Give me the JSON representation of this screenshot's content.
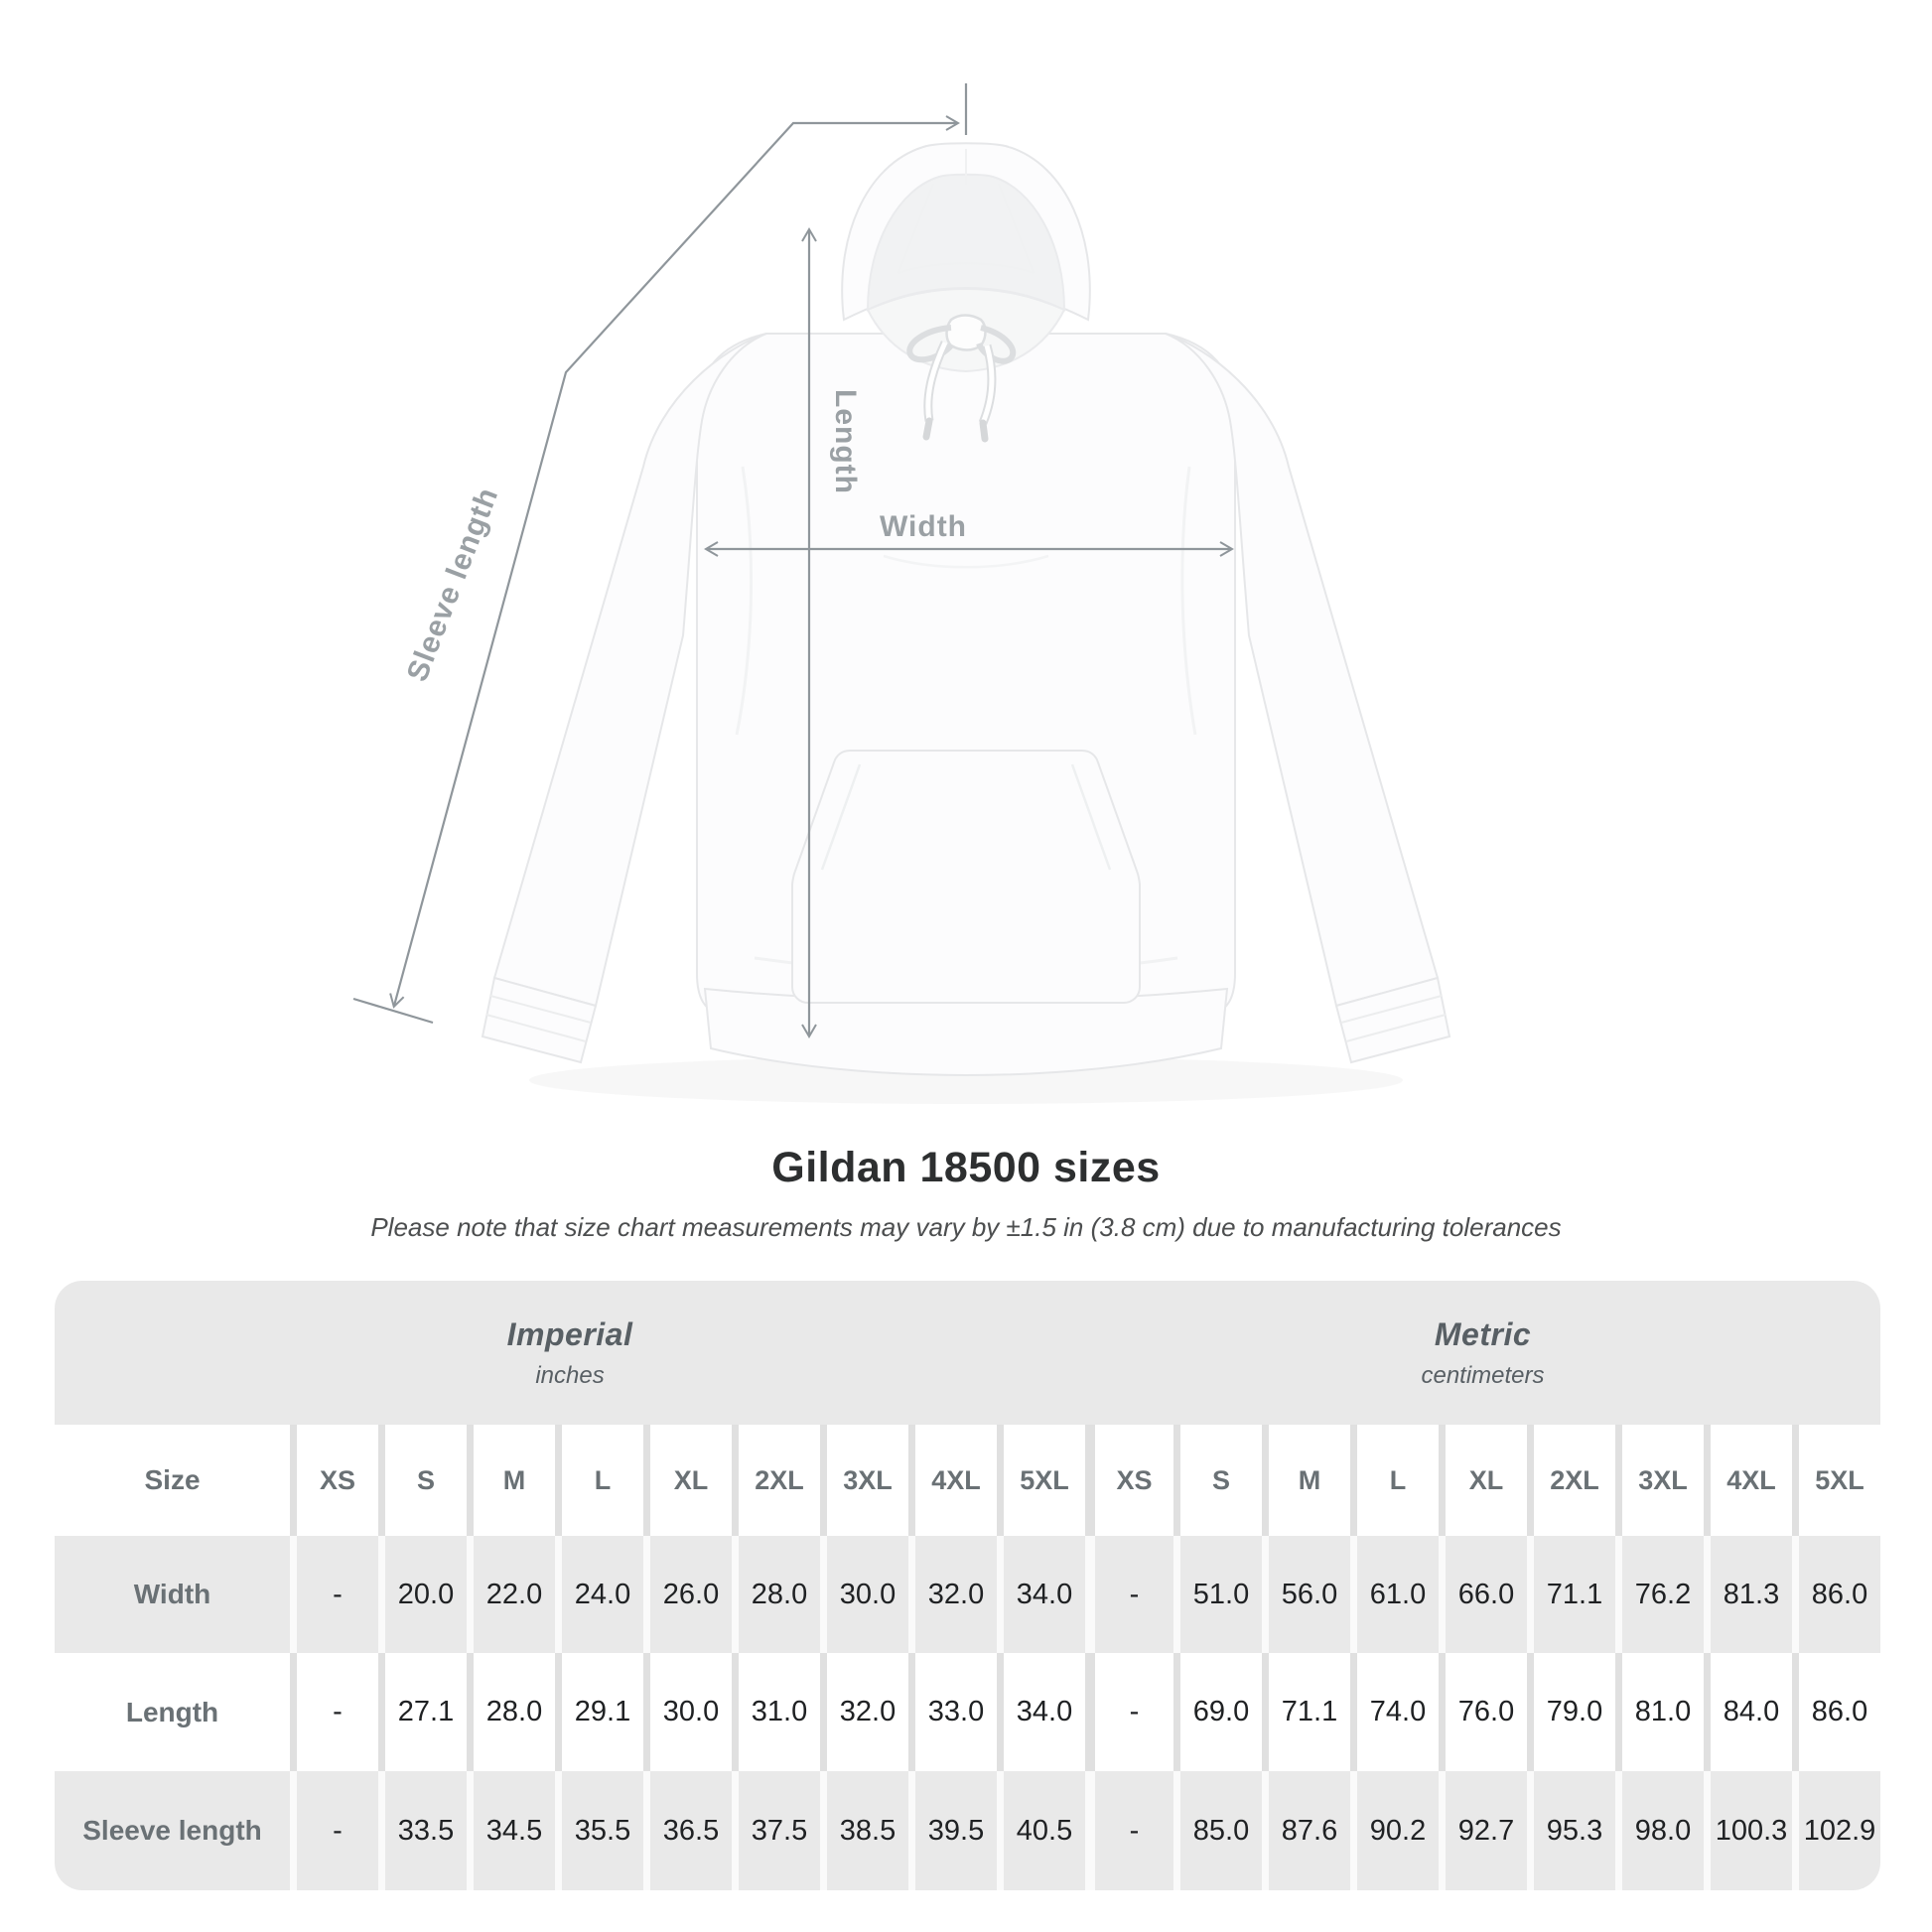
{
  "diagram": {
    "sleeve_length_label": "Sleeve length",
    "length_label": "Length",
    "width_label": "Width"
  },
  "heading": {
    "title": "Gildan 18500 sizes",
    "note": "Please note that size chart measurements may vary by ±1.5 in (3.8 cm) due to manufacturing tolerances"
  },
  "table": {
    "sections": [
      {
        "label": "Imperial",
        "sublabel": "inches"
      },
      {
        "label": "Metric",
        "sublabel": "centimeters"
      }
    ],
    "size_header": "Size",
    "sizes": [
      "XS",
      "S",
      "M",
      "L",
      "XL",
      "2XL",
      "3XL",
      "4XL",
      "5XL"
    ],
    "rows": [
      {
        "label": "Width",
        "imperial": [
          "-",
          "20.0",
          "22.0",
          "24.0",
          "26.0",
          "28.0",
          "30.0",
          "32.0",
          "34.0"
        ],
        "metric": [
          "-",
          "51.0",
          "56.0",
          "61.0",
          "66.0",
          "71.1",
          "76.2",
          "81.3",
          "86.0"
        ]
      },
      {
        "label": "Length",
        "imperial": [
          "-",
          "27.1",
          "28.0",
          "29.1",
          "30.0",
          "31.0",
          "32.0",
          "33.0",
          "34.0"
        ],
        "metric": [
          "-",
          "69.0",
          "71.1",
          "74.0",
          "76.0",
          "79.0",
          "81.0",
          "84.0",
          "86.0"
        ]
      },
      {
        "label": "Sleeve length",
        "imperial": [
          "-",
          "33.5",
          "34.5",
          "35.5",
          "36.5",
          "37.5",
          "38.5",
          "39.5",
          "40.5"
        ],
        "metric": [
          "-",
          "85.0",
          "87.6",
          "90.2",
          "92.7",
          "95.3",
          "98.0",
          "100.3",
          "102.9"
        ]
      }
    ]
  },
  "colors": {
    "table_gray": "#e9e9e9",
    "label_text": "#6a7175",
    "value_text": "#1f2123",
    "measure_line": "#8f969b",
    "measure_label": "#9aa0a4"
  },
  "chart_data": {
    "type": "table",
    "title": "Gildan 18500 sizes",
    "note": "Please note that size chart measurements may vary by ±1.5 in (3.8 cm) due to manufacturing tolerances",
    "units": {
      "imperial": "inches",
      "metric": "centimeters"
    },
    "sizes": [
      "XS",
      "S",
      "M",
      "L",
      "XL",
      "2XL",
      "3XL",
      "4XL",
      "5XL"
    ],
    "measurements": [
      {
        "measure": "Width",
        "imperial_inches": [
          null,
          20.0,
          22.0,
          24.0,
          26.0,
          28.0,
          30.0,
          32.0,
          34.0
        ],
        "metric_centimeters": [
          null,
          51.0,
          56.0,
          61.0,
          66.0,
          71.1,
          76.2,
          81.3,
          86.0
        ]
      },
      {
        "measure": "Length",
        "imperial_inches": [
          null,
          27.1,
          28.0,
          29.1,
          30.0,
          31.0,
          32.0,
          33.0,
          34.0
        ],
        "metric_centimeters": [
          null,
          69.0,
          71.1,
          74.0,
          76.0,
          79.0,
          81.0,
          84.0,
          86.0
        ]
      },
      {
        "measure": "Sleeve length",
        "imperial_inches": [
          null,
          33.5,
          34.5,
          35.5,
          36.5,
          37.5,
          38.5,
          39.5,
          40.5
        ],
        "metric_centimeters": [
          null,
          85.0,
          87.6,
          90.2,
          92.7,
          95.3,
          98.0,
          100.3,
          102.9
        ]
      }
    ]
  }
}
